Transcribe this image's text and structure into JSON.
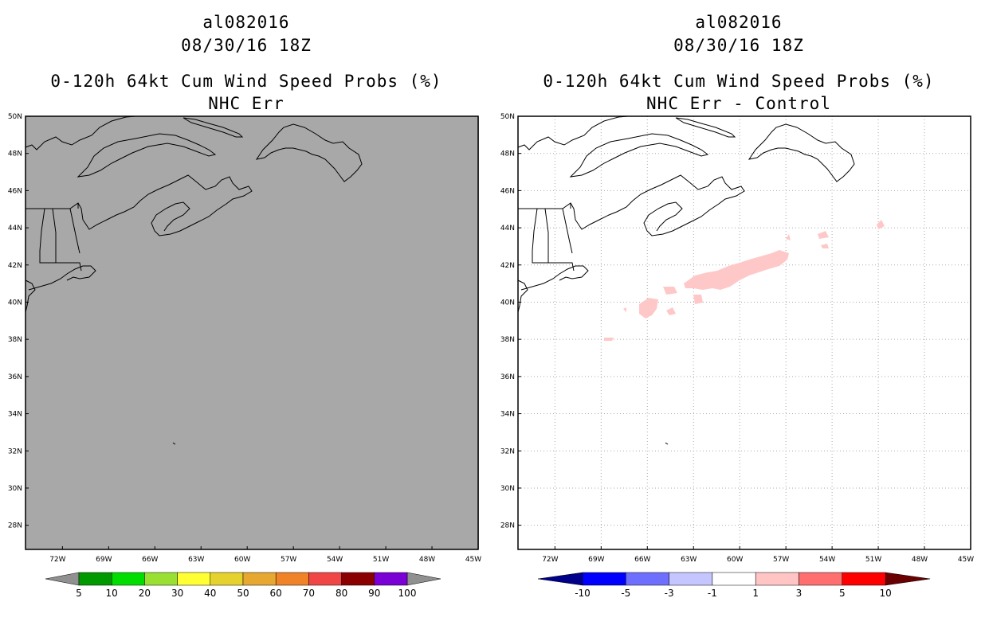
{
  "panels": [
    {
      "storm": "al082016",
      "datetime": "08/30/16 18Z",
      "product": "0-120h 64kt Cum Wind Speed Probs (%)",
      "subtitle": "NHC Err",
      "background_color": "#a8a8a8",
      "gridlines": false,
      "colorbar": {
        "colors": [
          "#009900",
          "#00dd00",
          "#99e033",
          "#ffff33",
          "#e6d22e",
          "#e6a830",
          "#f08228",
          "#f04646",
          "#8b0000",
          "#7b00d6"
        ],
        "labels": [
          "5",
          "10",
          "20",
          "30",
          "40",
          "50",
          "60",
          "70",
          "80",
          "90",
          "100"
        ],
        "end_left_color": "#909090",
        "end_right_color": "#909090"
      }
    },
    {
      "storm": "al082016",
      "datetime": "08/30/16 18Z",
      "product": "0-120h 64kt Cum Wind Speed Probs (%)",
      "subtitle": "NHC Err - Control",
      "background_color": "#ffffff",
      "gridlines": true,
      "shade_color": "#ffc8c8",
      "colorbar": {
        "colors": [
          "#0000ff",
          "#6f6fff",
          "#c5c5ff",
          "#ffffff",
          "#ffc5c5",
          "#ff6f6f",
          "#ff0000"
        ],
        "labels": [
          "-10",
          "-5",
          "-3",
          "-1",
          "1",
          "3",
          "5",
          "10"
        ],
        "end_left_color": "#00008b",
        "end_right_color": "#6b0000"
      }
    }
  ],
  "map": {
    "lat_labels": [
      "50N",
      "48N",
      "46N",
      "44N",
      "42N",
      "40N",
      "38N",
      "36N",
      "34N",
      "32N",
      "30N",
      "28N"
    ],
    "lat_values": [
      50,
      48,
      46,
      44,
      42,
      40,
      38,
      36,
      34,
      32,
      30,
      28
    ],
    "lon_labels": [
      "72W",
      "69W",
      "66W",
      "63W",
      "60W",
      "57W",
      "54W",
      "51W",
      "48W",
      "45W"
    ],
    "lon_values": [
      -72,
      -69,
      -66,
      -63,
      -60,
      -57,
      -54,
      -51,
      -48,
      -45
    ],
    "lon_range": [
      -74.4,
      -45
    ],
    "lat_range": [
      26.7,
      50
    ]
  }
}
